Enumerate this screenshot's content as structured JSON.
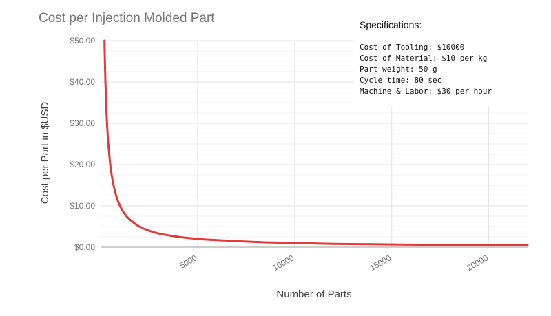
{
  "chart_data": {
    "type": "line",
    "title": "Cost per Injection Molded Part",
    "xlabel": "Number of Parts",
    "ylabel": "Cost per Part in $USD",
    "xlim": [
      0,
      22000
    ],
    "ylim": [
      0,
      50
    ],
    "x_ticks": [
      5000,
      10000,
      15000,
      20000
    ],
    "x_tick_labels": [
      "5000",
      "10000",
      "15000",
      "20000"
    ],
    "y_ticks": [
      0,
      10,
      20,
      30,
      40,
      50
    ],
    "y_tick_labels": [
      "$0.00",
      "$10.00",
      "$20.00",
      "$30.00",
      "$40.00",
      "$50.00"
    ],
    "grid": true,
    "series": [
      {
        "color": "#e53935",
        "x": [
          200,
          250,
          300,
          350,
          400,
          500,
          600,
          800,
          1000,
          1250,
          1500,
          2000,
          2500,
          3000,
          4000,
          5000,
          6000,
          8000,
          10000,
          12000,
          14000,
          16000,
          18000,
          20000,
          22000
        ],
        "y": [
          50.0,
          40.0,
          33.3,
          28.6,
          25.0,
          20.0,
          16.7,
          12.5,
          10.0,
          8.0,
          6.7,
          5.0,
          4.0,
          3.3,
          2.5,
          2.0,
          1.7,
          1.25,
          1.0,
          0.8,
          0.7,
          0.6,
          0.55,
          0.5,
          0.45
        ]
      }
    ],
    "annotations": {
      "title": "Specifications:",
      "lines": [
        "Cost of Tooling: $10000",
        "Cost of Material: $10 per kg",
        "Part weight: 50 g",
        "Cycle time: 80 sec",
        "Machine & Labor: $30 per hour"
      ]
    }
  },
  "colors": {
    "line": "#e53935",
    "grid": "#e3e3e3",
    "axis_text": "#777777",
    "title_text": "#757575",
    "label_text": "#444444"
  }
}
